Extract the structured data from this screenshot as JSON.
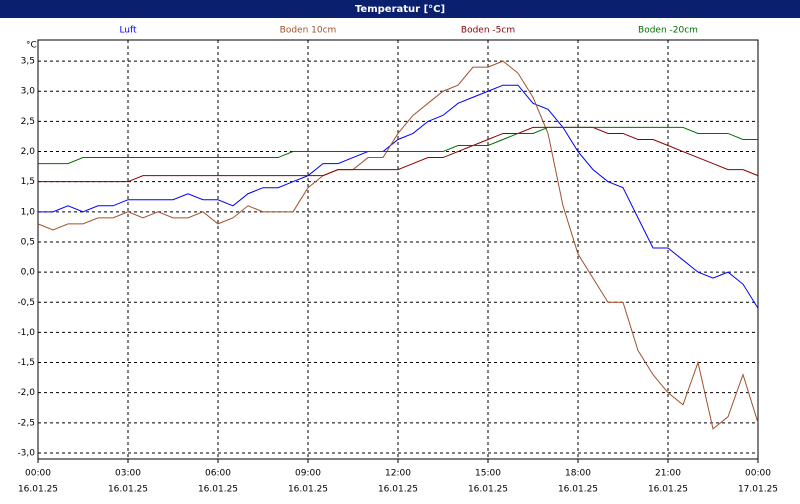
{
  "chart_data": {
    "type": "line",
    "title": "Temperatur [°C]",
    "y_unit": "°C",
    "x": [
      0,
      0.5,
      1,
      1.5,
      2,
      2.5,
      3,
      3.5,
      4,
      4.5,
      5,
      5.5,
      6,
      6.5,
      7,
      7.5,
      8,
      8.5,
      9,
      9.5,
      10,
      10.5,
      11,
      11.5,
      12,
      12.5,
      13,
      13.5,
      14,
      14.5,
      15,
      15.5,
      16,
      16.5,
      17,
      17.5,
      18,
      18.5,
      19,
      19.5,
      20,
      20.5,
      21,
      21.5,
      22,
      22.5,
      23,
      23.5,
      24
    ],
    "series": [
      {
        "name": "Luft",
        "color": "#0000ff",
        "values": [
          1.0,
          1.0,
          1.1,
          1.0,
          1.1,
          1.1,
          1.2,
          1.2,
          1.2,
          1.2,
          1.3,
          1.2,
          1.2,
          1.1,
          1.3,
          1.4,
          1.4,
          1.5,
          1.6,
          1.8,
          1.8,
          1.9,
          2.0,
          2.0,
          2.2,
          2.3,
          2.5,
          2.6,
          2.8,
          2.9,
          3.0,
          3.1,
          3.1,
          2.8,
          2.7,
          2.4,
          2.0,
          1.7,
          1.5,
          1.4,
          0.9,
          0.4,
          0.4,
          0.2,
          0.0,
          -0.1,
          0.0,
          -0.2,
          -0.6
        ]
      },
      {
        "name": "Boden 10cm",
        "color": "#a0522d",
        "values": [
          0.8,
          0.7,
          0.8,
          0.8,
          0.9,
          0.9,
          1.0,
          0.9,
          1.0,
          0.9,
          0.9,
          1.0,
          0.8,
          0.9,
          1.1,
          1.0,
          1.0,
          1.0,
          1.4,
          1.6,
          1.7,
          1.7,
          1.9,
          1.9,
          2.3,
          2.6,
          2.8,
          3.0,
          3.1,
          3.4,
          3.4,
          3.5,
          3.3,
          2.9,
          2.3,
          1.1,
          0.3,
          -0.1,
          -0.5,
          -0.5,
          -1.3,
          -1.7,
          -2.0,
          -2.2,
          -1.5,
          -2.6,
          -2.4,
          -1.7,
          -2.5
        ]
      },
      {
        "name": "Boden -5cm",
        "color": "#8b0000",
        "values": [
          1.5,
          1.5,
          1.5,
          1.5,
          1.5,
          1.5,
          1.5,
          1.6,
          1.6,
          1.6,
          1.6,
          1.6,
          1.6,
          1.6,
          1.6,
          1.6,
          1.6,
          1.6,
          1.6,
          1.6,
          1.7,
          1.7,
          1.7,
          1.7,
          1.7,
          1.8,
          1.9,
          1.9,
          2.0,
          2.1,
          2.2,
          2.3,
          2.3,
          2.4,
          2.4,
          2.4,
          2.4,
          2.4,
          2.3,
          2.3,
          2.2,
          2.2,
          2.1,
          2.0,
          1.9,
          1.8,
          1.7,
          1.7,
          1.6
        ]
      },
      {
        "name": "Boden -20cm",
        "color": "#007000",
        "values": [
          1.8,
          1.8,
          1.8,
          1.9,
          1.9,
          1.9,
          1.9,
          1.9,
          1.9,
          1.9,
          1.9,
          1.9,
          1.9,
          1.9,
          1.9,
          1.9,
          1.9,
          2.0,
          2.0,
          2.0,
          2.0,
          2.0,
          2.0,
          2.0,
          2.0,
          2.0,
          2.0,
          2.0,
          2.1,
          2.1,
          2.1,
          2.2,
          2.3,
          2.3,
          2.4,
          2.4,
          2.4,
          2.4,
          2.4,
          2.4,
          2.4,
          2.4,
          2.4,
          2.4,
          2.3,
          2.3,
          2.3,
          2.2,
          2.2
        ]
      }
    ],
    "xlim": [
      0,
      24
    ],
    "xticks": [
      {
        "value": 0,
        "label": "00:00",
        "date": "16.01.25"
      },
      {
        "value": 3,
        "label": "03:00",
        "date": "16.01.25"
      },
      {
        "value": 6,
        "label": "06:00",
        "date": "16.01.25"
      },
      {
        "value": 9,
        "label": "09:00",
        "date": "16.01.25"
      },
      {
        "value": 12,
        "label": "12:00",
        "date": "16.01.25"
      },
      {
        "value": 15,
        "label": "15:00",
        "date": "16.01.25"
      },
      {
        "value": 18,
        "label": "18:00",
        "date": "16.01.25"
      },
      {
        "value": 21,
        "label": "21:00",
        "date": "16.01.25"
      },
      {
        "value": 24,
        "label": "00:00",
        "date": "17.01.25"
      }
    ],
    "ylim": [
      -3.1,
      3.85
    ],
    "yticks": [
      {
        "value": 3.5,
        "label": "3,5"
      },
      {
        "value": 3.0,
        "label": "3,0"
      },
      {
        "value": 2.5,
        "label": "2,5"
      },
      {
        "value": 2.0,
        "label": "2,0"
      },
      {
        "value": 1.5,
        "label": "1,5"
      },
      {
        "value": 1.0,
        "label": "1,0"
      },
      {
        "value": 0.5,
        "label": "0,5"
      },
      {
        "value": 0.0,
        "label": "0,0"
      },
      {
        "value": -0.5,
        "label": "-0,5"
      },
      {
        "value": -1.0,
        "label": "-1,0"
      },
      {
        "value": -1.5,
        "label": "-1,5"
      },
      {
        "value": -2.0,
        "label": "-2,0"
      },
      {
        "value": -2.5,
        "label": "-2,5"
      },
      {
        "value": -3.0,
        "label": "-3,0"
      }
    ],
    "grid": true
  }
}
